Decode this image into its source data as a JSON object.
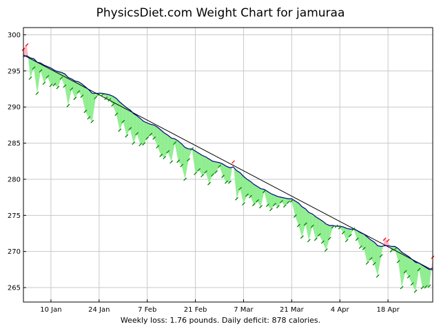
{
  "title": "PhysicsDiet.com Weight Chart for jamuraa",
  "footer": "Weekly loss: 1.76 pounds. Daily deficit: 878 calories.",
  "colors": {
    "background": "#ffffff",
    "grid": "#c8c8c8",
    "below_fill": "#90ee90",
    "above_fill": "#ffb6c1",
    "trend_line": "#000080",
    "regression_line": "#000000",
    "marker_below": "#008000",
    "marker_above": "#ff0000"
  },
  "chart_data": {
    "type": "line",
    "title": "PhysicsDiet.com Weight Chart for jamuraa",
    "xlabel": "",
    "ylabel": "",
    "xlim": [
      1,
      120
    ],
    "ylim": [
      263,
      301
    ],
    "grid": true,
    "x_ticks": [
      {
        "x": 9,
        "label": "10 Jan"
      },
      {
        "x": 23,
        "label": "24 Jan"
      },
      {
        "x": 37,
        "label": "7 Feb"
      },
      {
        "x": 51,
        "label": "21 Feb"
      },
      {
        "x": 65,
        "label": "7 Mar"
      },
      {
        "x": 79,
        "label": "21 Mar"
      },
      {
        "x": 93,
        "label": "4 Apr"
      },
      {
        "x": 107,
        "label": "18 Apr"
      }
    ],
    "y_ticks": [
      265,
      270,
      275,
      280,
      285,
      290,
      295,
      300
    ],
    "regression": {
      "x": [
        1,
        120
      ],
      "y": [
        297.2,
        267.4
      ]
    },
    "series": [
      {
        "role": "weight",
        "x": [
          1,
          2,
          3,
          4,
          5,
          6,
          7,
          8,
          9,
          10,
          11,
          12,
          13,
          14,
          15,
          16,
          17,
          18,
          19,
          20,
          21,
          22,
          23,
          24,
          25,
          26,
          27,
          28,
          29,
          30,
          31,
          32,
          33,
          34,
          35,
          36,
          37,
          38,
          39,
          40,
          41,
          42,
          43,
          44,
          45,
          46,
          47,
          48,
          49,
          50,
          51,
          52,
          53,
          54,
          55,
          56,
          57,
          58,
          59,
          60,
          61,
          62,
          63,
          64,
          65,
          66,
          67,
          68,
          69,
          70,
          71,
          72,
          73,
          74,
          75,
          76,
          77,
          78,
          79,
          80,
          81,
          82,
          83,
          84,
          85,
          86,
          87,
          88,
          89,
          90,
          91,
          92,
          93,
          94,
          95,
          96,
          97,
          98,
          99,
          100,
          101,
          102,
          103,
          104,
          105,
          106,
          107,
          108,
          109,
          110,
          111,
          112,
          113,
          114,
          115,
          116,
          117,
          118,
          119,
          120
        ],
        "y": [
          298.0,
          298.6,
          294.0,
          295.4,
          291.9,
          295.0,
          293.3,
          294.2,
          293.0,
          293.1,
          292.7,
          294.0,
          292.9,
          290.2,
          292.5,
          291.2,
          292.1,
          291.5,
          289.4,
          288.5,
          288.0,
          291.3,
          291.8,
          291.7,
          291.2,
          291.0,
          290.3,
          289.0,
          286.8,
          288.0,
          286.0,
          287.0,
          285.0,
          286.3,
          284.8,
          284.9,
          285.7,
          286.2,
          285.7,
          284.5,
          283.3,
          283.0,
          283.8,
          282.4,
          285.0,
          282.5,
          281.9,
          280.0,
          282.7,
          284.2,
          280.8,
          281.3,
          280.5,
          281.0,
          279.4,
          280.6,
          281.0,
          281.8,
          280.4,
          279.6,
          279.6,
          282.4,
          277.3,
          278.7,
          276.6,
          277.8,
          277.6,
          276.5,
          277.0,
          276.2,
          278.3,
          276.4,
          275.8,
          276.5,
          276.2,
          276.9,
          276.3,
          276.8,
          277.0,
          274.9,
          273.6,
          272.0,
          273.8,
          271.5,
          273.5,
          271.7,
          272.3,
          271.3,
          270.2,
          271.8,
          273.4,
          273.5,
          273.3,
          272.6,
          271.5,
          272.2,
          273.1,
          271.7,
          270.6,
          270.4,
          268.4,
          269.0,
          268.3,
          266.6,
          269.4,
          271.7,
          271.5,
          270.1,
          270.3,
          268.6,
          265.0,
          267.2,
          266.5,
          265.5,
          264.5,
          267.5,
          265.0,
          265.1,
          265.2,
          269.2
        ]
      },
      {
        "role": "trend",
        "x": [
          1,
          2,
          3,
          4,
          5,
          6,
          7,
          8,
          9,
          10,
          11,
          12,
          13,
          14,
          15,
          16,
          17,
          18,
          19,
          20,
          21,
          22,
          23,
          24,
          25,
          26,
          27,
          28,
          29,
          30,
          31,
          32,
          33,
          34,
          35,
          36,
          37,
          38,
          39,
          40,
          41,
          42,
          43,
          44,
          45,
          46,
          47,
          48,
          49,
          50,
          51,
          52,
          53,
          54,
          55,
          56,
          57,
          58,
          59,
          60,
          61,
          62,
          63,
          64,
          65,
          66,
          67,
          68,
          69,
          70,
          71,
          72,
          73,
          74,
          75,
          76,
          77,
          78,
          79,
          80,
          81,
          82,
          83,
          84,
          85,
          86,
          87,
          88,
          89,
          90,
          91,
          92,
          93,
          94,
          95,
          96,
          97,
          98,
          99,
          100,
          101,
          102,
          103,
          104,
          105,
          106,
          107,
          108,
          109,
          110,
          111,
          112,
          113,
          114,
          115,
          116,
          117,
          118,
          119,
          120
        ],
        "y": [
          297.0,
          297.1,
          296.8,
          296.7,
          296.2,
          296.1,
          295.8,
          295.6,
          295.4,
          295.1,
          294.9,
          294.8,
          294.6,
          294.1,
          293.9,
          293.6,
          293.5,
          293.2,
          292.8,
          292.4,
          291.9,
          291.9,
          291.9,
          291.9,
          291.8,
          291.7,
          291.5,
          291.2,
          290.7,
          290.3,
          289.9,
          289.6,
          289.1,
          288.8,
          288.4,
          288.0,
          287.8,
          287.6,
          287.5,
          287.2,
          286.8,
          286.4,
          286.1,
          285.7,
          285.6,
          285.3,
          284.9,
          284.4,
          284.2,
          284.2,
          283.9,
          283.6,
          283.3,
          283.1,
          282.8,
          282.5,
          282.4,
          282.3,
          282.1,
          281.8,
          281.6,
          281.7,
          281.2,
          280.9,
          280.4,
          280.0,
          279.7,
          279.3,
          279.0,
          278.7,
          278.6,
          278.3,
          278.0,
          277.8,
          277.6,
          277.5,
          277.4,
          277.3,
          277.3,
          277.0,
          276.7,
          276.2,
          275.9,
          275.4,
          275.2,
          274.8,
          274.5,
          274.2,
          273.8,
          273.6,
          273.6,
          273.5,
          273.5,
          273.4,
          273.2,
          273.1,
          273.1,
          272.9,
          272.6,
          272.4,
          272.0,
          271.6,
          271.3,
          270.8,
          270.7,
          270.8,
          270.8,
          270.7,
          270.7,
          270.4,
          269.9,
          269.6,
          269.3,
          268.9,
          268.5,
          268.4,
          268.1,
          267.8,
          267.5,
          267.7
        ]
      }
    ]
  }
}
